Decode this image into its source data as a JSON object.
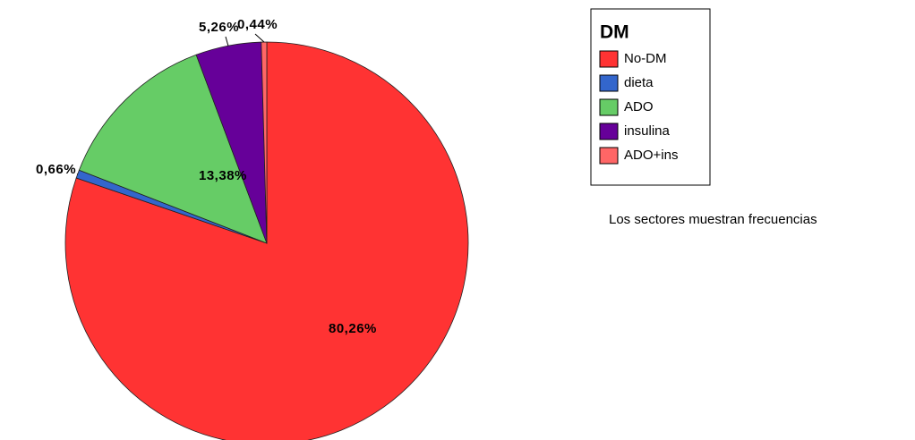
{
  "chart_data": {
    "type": "pie",
    "legend_title": "DM",
    "categories": [
      "No-DM",
      "dieta",
      "ADO",
      "insulina",
      "ADO+ins"
    ],
    "values": [
      80.26,
      0.66,
      13.38,
      5.26,
      0.44
    ],
    "value_labels": [
      "80,26%",
      "0,66%",
      "13,38%",
      "5,26%",
      "0,44%"
    ],
    "colors": [
      "#ff3333",
      "#3366cc",
      "#66cc66",
      "#660099",
      "#ff6666"
    ],
    "footnote": "Los sectores muestran frecuencias",
    "legend_position": "upper right"
  }
}
